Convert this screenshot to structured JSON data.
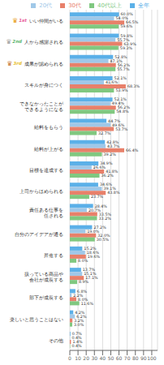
{
  "chart_data": {
    "type": "bar",
    "orientation": "horizontal",
    "categories": [
      "いい仲間がいる",
      "人から感謝される",
      "成果が認められる",
      "スキルが身につく",
      "できなかったことが\nできるようになる",
      "給料をもらう",
      "給料が上がる",
      "目標を達成する",
      "上司からほめられる",
      "責任ある仕事を\n任される",
      "自分のアイデアが通る",
      "昇進する",
      "扱っている商品や\n会社が成長する",
      "部下が成長する",
      "楽しいと思うことはない",
      "その他"
    ],
    "series": [
      {
        "name": "全年",
        "color": "#5bb0e8",
        "values": [
          60.0,
          59.8,
          52.8,
          52.1,
          52.1,
          44.7,
          42.8,
          34.9,
          34.6,
          28.4,
          27.2,
          15.2,
          13.7,
          6.8,
          4.2,
          0.7
        ],
        "value_labels": [
          "60.0%",
          "59.8%",
          "52.8%",
          "52.1%",
          "52.1%",
          "44.7%",
          "42.8%",
          "34.9%",
          "34.6%",
          "28.4%",
          "27.2%",
          "15.2%",
          "13.7%",
          "6.8%",
          "4.2%",
          "0.7%"
        ]
      },
      {
        "name": "20代",
        "color": "#a0c8e8",
        "values": [
          54.0,
          55.7,
          47.1,
          41.6,
          49.4,
          49.6,
          43.7,
          26.6,
          39.1,
          20.7,
          19.0,
          18.6,
          15.1,
          2.2,
          6.2,
          0.4
        ],
        "value_labels": [
          "54.0%",
          "55.7%",
          "47.1%",
          "41.6%",
          "49.4%",
          "49.6%",
          "43.7%",
          "26.6%",
          "39.1%",
          "20.7%",
          "19.0%",
          "18.6%",
          "15.1%",
          "2.2%",
          "6.2%",
          "0.4%"
        ]
      },
      {
        "name": "30代",
        "color": "#e8806a",
        "values": [
          66.5,
          63.9,
          56.2,
          68.3,
          56.2,
          53.7,
          66.4,
          41.8,
          43.8,
          33.5,
          32.0,
          19.6,
          17.1,
          8.0,
          3.2,
          1.4
        ],
        "value_labels": [
          "66.5%",
          "63.9%",
          "56.2%",
          "68.3%",
          "56.2%",
          "53.7%",
          "66.4%",
          "41.8%",
          "43.8%",
          "33.5%",
          "32.0%",
          "19.6%",
          "17.1%",
          "8.0%",
          "3.2%",
          "1.4%"
        ]
      },
      {
        "name": "40代以上",
        "color": "#80c880",
        "values": [
          59.6,
          59.3,
          55.7,
          53.9,
          54.8,
          32.7,
          39.2,
          36.2,
          23.7,
          33.2,
          30.5,
          8.0,
          8.9,
          11.6,
          3.0,
          0.4
        ],
        "value_labels": [
          "59.6%",
          "59.3%",
          "55.7%",
          "53.9%",
          "54.8%",
          "32.7%",
          "39.2%",
          "36.2%",
          "23.7%",
          "33.2%",
          "30.5%",
          "8.0%",
          "8.9%",
          "11.6%",
          "3.0%",
          "0.4%"
        ]
      }
    ],
    "xlim": [
      0,
      107
    ],
    "xticks": [
      0,
      10,
      20,
      30,
      40,
      50,
      60,
      70,
      80,
      90,
      100
    ],
    "grid": true,
    "data_labels": true,
    "legend": "top right",
    "annotations": [
      {
        "category": "いい仲間がいる",
        "text": "♛",
        "color": "#e8a020"
      },
      {
        "category": "いい仲間がいる",
        "text": "1st",
        "color": "#e8609a"
      },
      {
        "category": "人から感謝される",
        "text": "♛",
        "color": "#a0a0a0"
      },
      {
        "category": "人から感謝される",
        "text": "2nd",
        "color": "#60b870"
      },
      {
        "category": "成果が認められる",
        "text": "♛",
        "color": "#c8783c"
      },
      {
        "category": "成果が認められる",
        "text": "3rd",
        "color": "#e8c030"
      }
    ]
  }
}
